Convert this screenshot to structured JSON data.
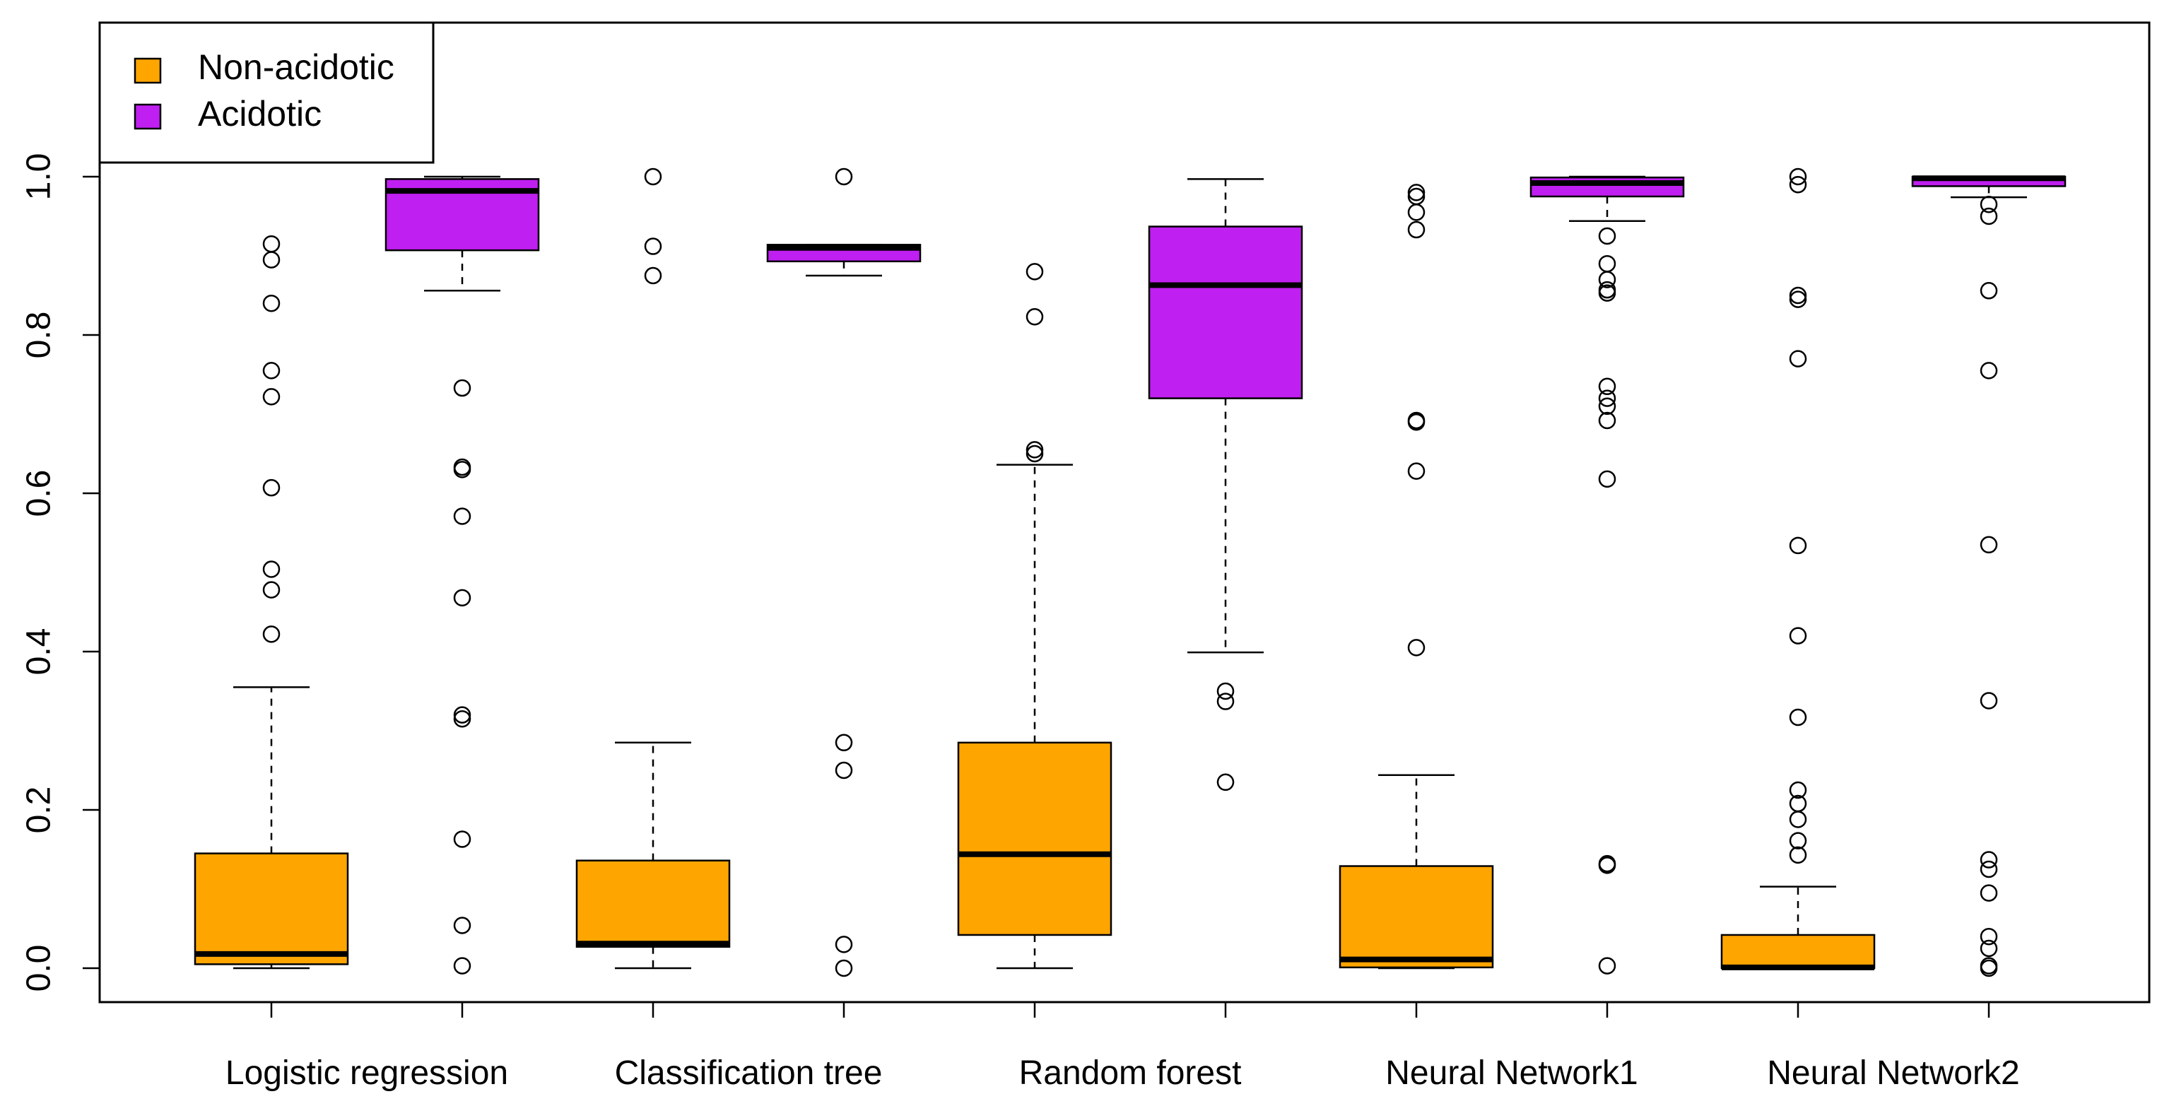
{
  "chart_data": {
    "type": "boxplot",
    "title": "",
    "xlabel": "",
    "ylabel": "",
    "ylim": [
      -0.05,
      1.18
    ],
    "yticks": [
      "0.0",
      "0.2",
      "0.4",
      "0.6",
      "0.8",
      "1.0"
    ],
    "ytick_values": [
      0.0,
      0.2,
      0.4,
      0.6,
      0.8,
      1.0
    ],
    "categories": [
      "Logistic regression",
      "Classification tree",
      "Random forest",
      "Neural Network1",
      "Neural Network2"
    ],
    "legend": {
      "position": "top-left",
      "entries": [
        {
          "label": "Non-acidotic",
          "color": "#FFA500"
        },
        {
          "label": "Acidotic",
          "color": "#BF1FF0"
        }
      ]
    },
    "series": [
      {
        "name": "Non-acidotic",
        "color": "#FFA500",
        "boxes": [
          {
            "whisker_low": 0.0,
            "q1": 0.005,
            "median": 0.018,
            "q3": 0.145,
            "whisker_high": 0.355,
            "outliers": [
              0.422,
              0.478,
              0.504,
              0.607,
              0.722,
              0.755,
              0.84,
              0.895,
              0.915
            ]
          },
          {
            "whisker_low": 0.0,
            "q1": 0.027,
            "median": 0.031,
            "q3": 0.136,
            "whisker_high": 0.285,
            "outliers": [
              0.875,
              0.912,
              1.0
            ]
          },
          {
            "whisker_low": 0.0,
            "q1": 0.042,
            "median": 0.144,
            "q3": 0.285,
            "whisker_high": 0.636,
            "outliers": [
              0.65,
              0.655,
              0.823,
              0.88
            ]
          },
          {
            "whisker_low": 0.0,
            "q1": 0.001,
            "median": 0.011,
            "q3": 0.129,
            "whisker_high": 0.244,
            "outliers": [
              0.405,
              0.628,
              0.69,
              0.692,
              0.933,
              0.955,
              0.975,
              0.98
            ]
          },
          {
            "whisker_low": 0.0,
            "q1": 0.0,
            "median": 0.001,
            "q3": 0.042,
            "whisker_high": 0.103,
            "outliers": [
              0.143,
              0.161,
              0.188,
              0.208,
              0.225,
              0.317,
              0.42,
              0.534,
              0.77,
              0.845,
              0.85,
              0.99,
              1.0
            ]
          }
        ]
      },
      {
        "name": "Acidotic",
        "color": "#BF1FF0",
        "boxes": [
          {
            "whisker_low": 0.856,
            "q1": 0.907,
            "median": 0.982,
            "q3": 0.997,
            "whisker_high": 1.0,
            "outliers": [
              0.003,
              0.054,
              0.163,
              0.315,
              0.32,
              0.468,
              0.571,
              0.63,
              0.633,
              0.733
            ]
          },
          {
            "whisker_low": 0.875,
            "q1": 0.893,
            "median": 0.91,
            "q3": 0.914,
            "whisker_high": 0.914,
            "outliers": [
              0.0,
              0.03,
              0.25,
              0.285,
              1.0
            ]
          },
          {
            "whisker_low": 0.399,
            "q1": 0.72,
            "median": 0.863,
            "q3": 0.937,
            "whisker_high": 0.997,
            "outliers": [
              0.235,
              0.337,
              0.35
            ]
          },
          {
            "whisker_low": 0.944,
            "q1": 0.975,
            "median": 0.992,
            "q3": 0.999,
            "whisker_high": 1.0,
            "outliers": [
              0.003,
              0.13,
              0.132,
              0.618,
              0.692,
              0.71,
              0.72,
              0.735,
              0.853,
              0.857,
              0.87,
              0.89,
              0.925
            ]
          },
          {
            "whisker_low": 0.974,
            "q1": 0.988,
            "median": 0.998,
            "q3": 1.0,
            "whisker_high": 1.0,
            "outliers": [
              0.0,
              0.003,
              0.025,
              0.04,
              0.095,
              0.125,
              0.137,
              0.338,
              0.535,
              0.755,
              0.856,
              0.95,
              0.965
            ]
          }
        ]
      }
    ]
  }
}
